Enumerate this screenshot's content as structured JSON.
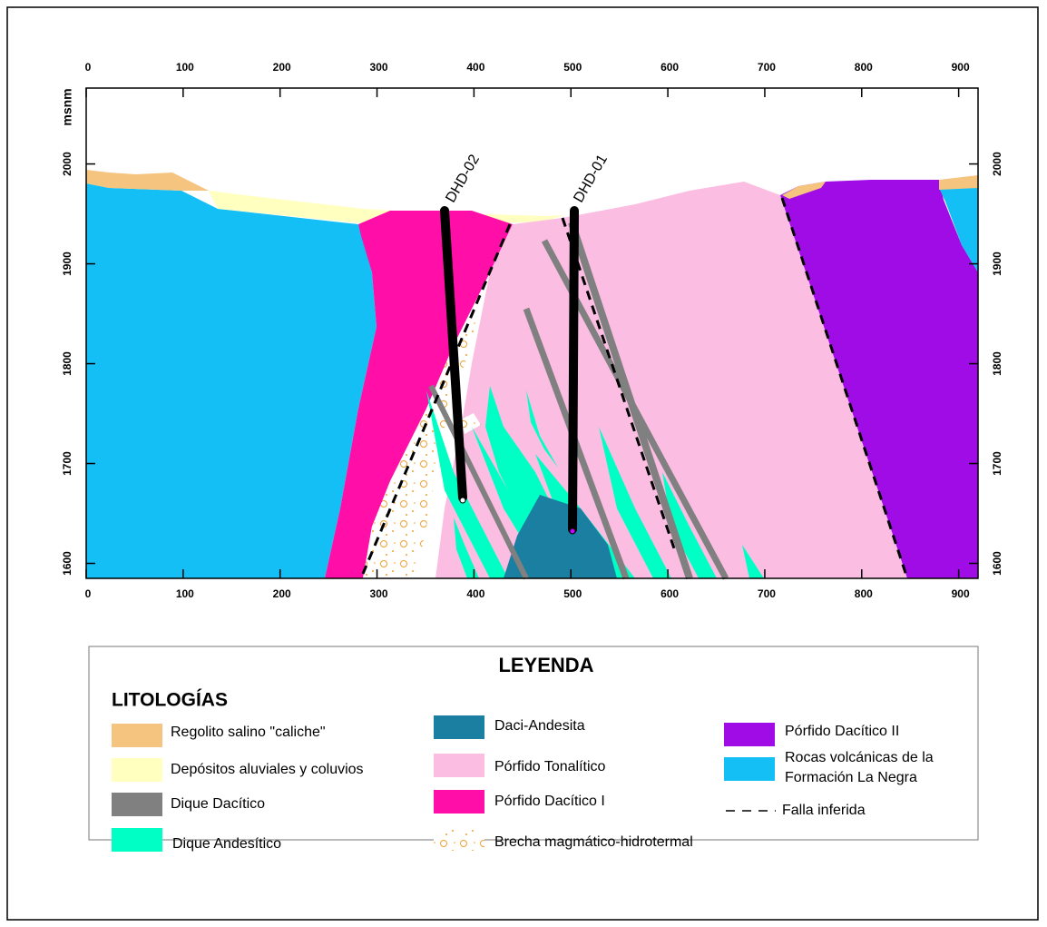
{
  "map": {
    "x_axis": {
      "xlim": [
        0,
        920
      ],
      "xticks": [
        0,
        100,
        200,
        300,
        400,
        500,
        600,
        700,
        800,
        900
      ]
    },
    "y_axis": {
      "label": "msnm",
      "ylim": [
        1585,
        2076
      ],
      "yticks": [
        1600,
        1700,
        1800,
        1900,
        2000
      ]
    },
    "drill_holes": [
      "DHD-02",
      "DHD-01"
    ],
    "legend": {
      "title": "LEYENDA",
      "section": "LITOLOGÍAS",
      "items": [
        {
          "label": "Regolito salino \"caliche\"",
          "color": "#f5c47e"
        },
        {
          "label": "Depósitos aluviales y coluvios",
          "color": "#ffffc0"
        },
        {
          "label": "Dique Dacítico",
          "color": "#808080"
        },
        {
          "label": "Dique Andesítico",
          "color": "#00ffc4"
        },
        {
          "label": "Daci-Andesita",
          "color": "#1a7fa0"
        },
        {
          "label": "Pórfido Tonalítico",
          "color": "#fcbde3"
        },
        {
          "label": "Pórfido Dacítico I",
          "color": "#ff0fa8"
        },
        {
          "label": "Brecha magmático-hidrotermal",
          "color": "#ffffff",
          "dot_color": "#f0a030"
        },
        {
          "label": "Pórfido Dacítico II",
          "color": "#a00ce6"
        },
        {
          "label": [
            "Rocas volcánicas de la",
            "Formación La Negra"
          ],
          "color": "#14bff5"
        },
        {
          "label": "Falla inferida",
          "color": "#000000"
        }
      ]
    }
  }
}
